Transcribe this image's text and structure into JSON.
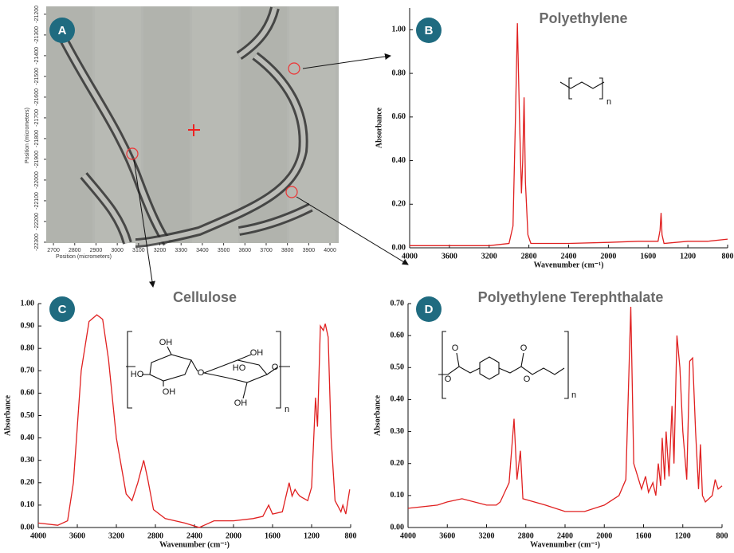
{
  "chart_data": [
    {
      "type": "image",
      "panel": "A",
      "xlabel": "Position (micrometers)",
      "ylabel": "Position (micrometers)",
      "xlim": [
        2666,
        4041
      ],
      "xticks": [
        2700,
        2800,
        2900,
        3000,
        3100,
        3200,
        3300,
        3400,
        3500,
        3600,
        3700,
        3800,
        3900,
        4000
      ],
      "ylim": [
        -21162,
        -22304
      ],
      "yticks": [
        -21200,
        -21300,
        -21400,
        -21500,
        -21600,
        -21700,
        -21800,
        -21900,
        -22000,
        -22100,
        -22200,
        -22300
      ]
    },
    {
      "type": "line",
      "panel": "B",
      "title": "Polyethylene",
      "xlabel": "Wavenumber (cm⁻¹)",
      "ylabel": "Absorbance",
      "color": "#e02020",
      "structure_labels": [
        "n"
      ],
      "xlim": [
        4000,
        800
      ],
      "xticks": [
        4000,
        3600,
        3200,
        2800,
        2400,
        2000,
        1600,
        1200,
        800
      ],
      "ylim": [
        0,
        1.1
      ],
      "yticks": [
        {
          "value": 0,
          "label": "0.00"
        },
        {
          "value": 0.2,
          "label": "0.20"
        },
        {
          "value": 0.4,
          "label": "0.40"
        },
        {
          "value": 0.6,
          "label": "0.60"
        },
        {
          "value": 0.8,
          "label": "0.80"
        },
        {
          "value": 1,
          "label": "1.00"
        }
      ],
      "x": [
        4000,
        3600,
        3200,
        3000,
        2960,
        2935,
        2916,
        2895,
        2875,
        2862,
        2848,
        2835,
        2810,
        2780,
        2400,
        2000,
        1700,
        1500,
        1480,
        1470,
        1460,
        1440,
        1200,
        1000,
        800
      ],
      "values": [
        0.01,
        0.01,
        0.01,
        0.02,
        0.1,
        0.6,
        1.03,
        0.6,
        0.25,
        0.4,
        0.69,
        0.3,
        0.06,
        0.02,
        0.02,
        0.025,
        0.03,
        0.03,
        0.08,
        0.16,
        0.06,
        0.02,
        0.03,
        0.03,
        0.04
      ]
    },
    {
      "type": "line",
      "panel": "C",
      "title": "Cellulose",
      "xlabel": "Wavenumber (cm⁻¹)",
      "ylabel": "Absorbance",
      "color": "#e02020",
      "structure_labels": [
        "OH",
        "HO",
        "OH",
        "O",
        "HO",
        "OH",
        "O",
        "OH",
        "n"
      ],
      "xlim": [
        4000,
        800
      ],
      "xticks": [
        4000,
        3600,
        3200,
        2800,
        2400,
        2000,
        1600,
        1200,
        800
      ],
      "ylim": [
        0,
        1
      ],
      "yticks": [
        {
          "value": 0,
          "label": "0.00"
        },
        {
          "value": 0.1,
          "label": "0.10"
        },
        {
          "value": 0.2,
          "label": "0.20"
        },
        {
          "value": 0.3,
          "label": "0.30"
        },
        {
          "value": 0.4,
          "label": "0.40"
        },
        {
          "value": 0.5,
          "label": "0.50"
        },
        {
          "value": 0.6,
          "label": "0.60"
        },
        {
          "value": 0.7,
          "label": "0.70"
        },
        {
          "value": 0.8,
          "label": "0.80"
        },
        {
          "value": 0.9,
          "label": "0.90"
        },
        {
          "value": 1,
          "label": "1.00"
        }
      ],
      "x": [
        4000,
        3800,
        3700,
        3640,
        3560,
        3480,
        3400,
        3340,
        3280,
        3200,
        3100,
        3040,
        2980,
        2920,
        2880,
        2820,
        2700,
        2500,
        2350,
        2200,
        2000,
        1800,
        1700,
        1640,
        1600,
        1500,
        1430,
        1400,
        1370,
        1340,
        1320,
        1240,
        1200,
        1160,
        1140,
        1110,
        1080,
        1060,
        1030,
        1000,
        960,
        900,
        880,
        850,
        810
      ],
      "values": [
        0.02,
        0.01,
        0.03,
        0.2,
        0.7,
        0.92,
        0.95,
        0.93,
        0.75,
        0.4,
        0.15,
        0.12,
        0.2,
        0.3,
        0.22,
        0.08,
        0.04,
        0.02,
        0.0,
        0.03,
        0.03,
        0.04,
        0.05,
        0.1,
        0.06,
        0.07,
        0.2,
        0.14,
        0.17,
        0.15,
        0.14,
        0.12,
        0.18,
        0.58,
        0.45,
        0.9,
        0.88,
        0.91,
        0.85,
        0.4,
        0.12,
        0.07,
        0.1,
        0.06,
        0.17
      ]
    },
    {
      "type": "line",
      "panel": "D",
      "title": "Polyethylene Terephthalate",
      "xlabel": "Wavenumber (cm⁻¹)",
      "ylabel": "Absorbance",
      "color": "#e02020",
      "structure_labels": [
        "O",
        "O",
        "O",
        "O",
        "n"
      ],
      "xlim": [
        4000,
        800
      ],
      "xticks": [
        4000,
        3600,
        3200,
        2800,
        2400,
        2000,
        1600,
        1200,
        800
      ],
      "ylim": [
        0,
        0.7
      ],
      "yticks": [
        {
          "value": 0,
          "label": "0.00"
        },
        {
          "value": 0.1,
          "label": "0.10"
        },
        {
          "value": 0.2,
          "label": "0.20"
        },
        {
          "value": 0.3,
          "label": "0.30"
        },
        {
          "value": 0.4,
          "label": "0.40"
        },
        {
          "value": 0.5,
          "label": "0.50"
        },
        {
          "value": 0.6,
          "label": "0.60"
        },
        {
          "value": 0.7,
          "label": "0.70"
        }
      ],
      "x": [
        4000,
        3700,
        3600,
        3450,
        3200,
        3100,
        3060,
        2970,
        2920,
        2890,
        2855,
        2830,
        2600,
        2400,
        2200,
        2000,
        1950,
        1850,
        1780,
        1730,
        1700,
        1620,
        1580,
        1550,
        1505,
        1475,
        1450,
        1425,
        1410,
        1385,
        1370,
        1340,
        1310,
        1290,
        1260,
        1230,
        1200,
        1160,
        1130,
        1100,
        1070,
        1040,
        1020,
        1000,
        970,
        900,
        870,
        840,
        800
      ],
      "values": [
        0.06,
        0.07,
        0.08,
        0.09,
        0.07,
        0.07,
        0.08,
        0.14,
        0.34,
        0.15,
        0.24,
        0.09,
        0.07,
        0.05,
        0.05,
        0.07,
        0.08,
        0.1,
        0.15,
        0.69,
        0.2,
        0.12,
        0.16,
        0.11,
        0.14,
        0.1,
        0.2,
        0.13,
        0.28,
        0.15,
        0.3,
        0.16,
        0.38,
        0.2,
        0.6,
        0.5,
        0.3,
        0.15,
        0.52,
        0.53,
        0.3,
        0.12,
        0.26,
        0.1,
        0.08,
        0.1,
        0.15,
        0.12,
        0.13
      ]
    }
  ]
}
